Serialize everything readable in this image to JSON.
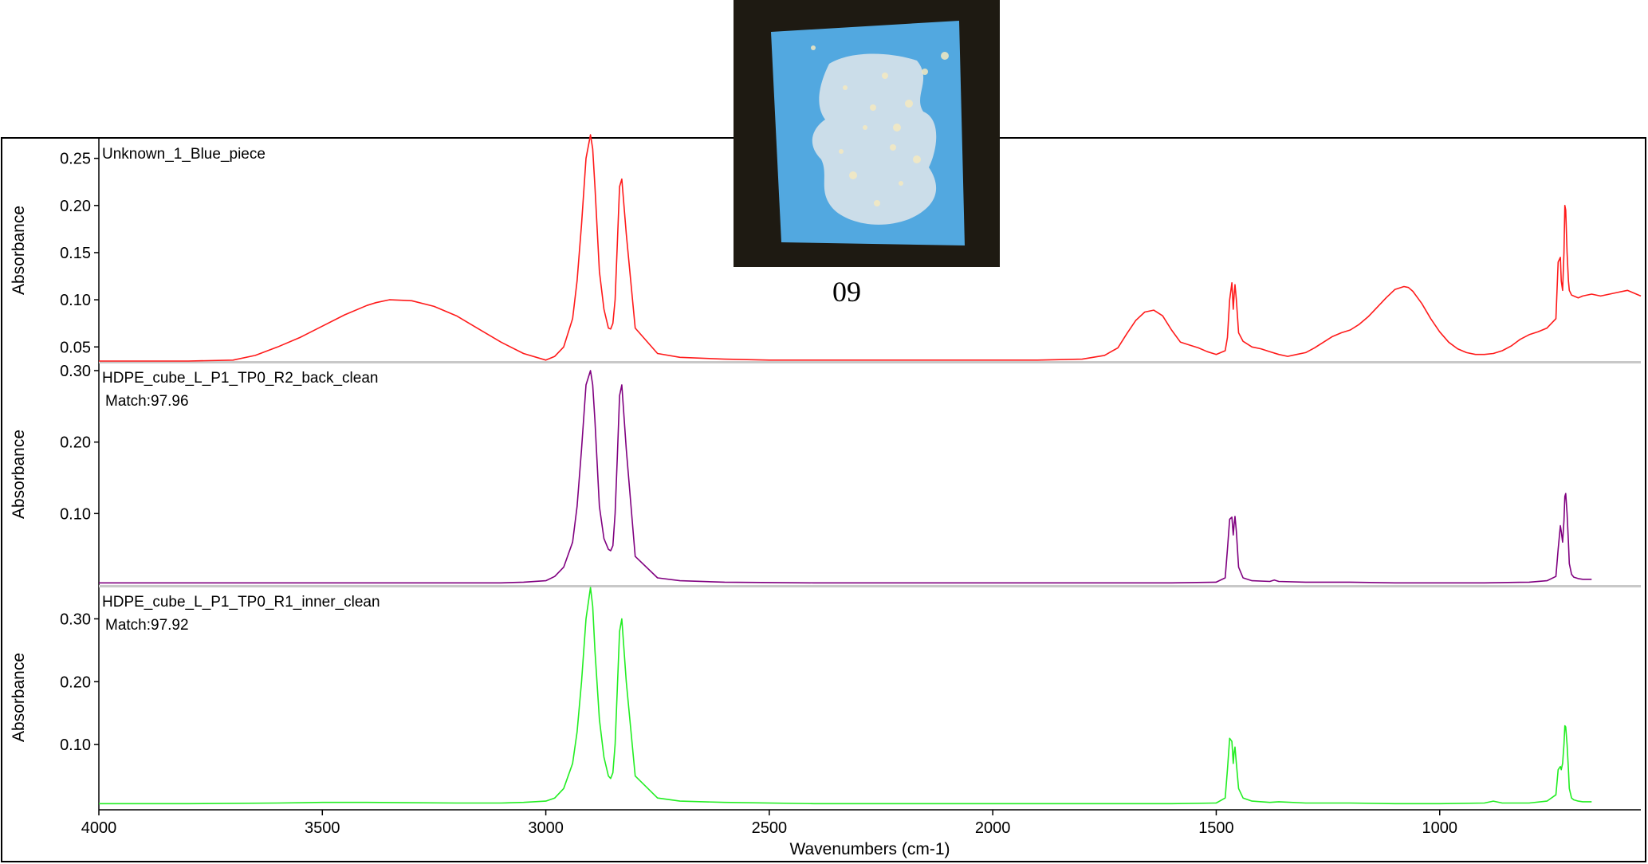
{
  "photo": {
    "caption": "09",
    "background_color": "#1e1a12",
    "sheet_color": "#52a8e0",
    "deposit_color": "#d8e2ea"
  },
  "chart_data": {
    "type": "line",
    "xlabel": "Wavenumbers (cm-1)",
    "xlim": [
      4000,
      550
    ],
    "x_ticks": [
      4000,
      3500,
      3000,
      2500,
      2000,
      1500,
      1000
    ],
    "x_tick_labels": [
      "4000",
      "3500",
      "3000",
      "2500",
      "2000",
      "1500",
      "1000"
    ],
    "panels": [
      {
        "title": "Unknown_1_Blue_piece",
        "match": "",
        "ylabel": "Absorbance",
        "ylim": [
          0.035,
          0.27
        ],
        "y_ticks": [
          0.05,
          0.1,
          0.15,
          0.2,
          0.25
        ],
        "y_tick_labels": [
          "0.05",
          "0.10",
          "0.15",
          "0.20",
          "0.25"
        ],
        "color": "#ff1a1a",
        "series": {
          "x": [
            4000,
            3900,
            3800,
            3700,
            3650,
            3600,
            3550,
            3500,
            3450,
            3400,
            3380,
            3350,
            3300,
            3250,
            3200,
            3150,
            3100,
            3050,
            3000,
            2980,
            2960,
            2940,
            2930,
            2920,
            2910,
            2900,
            2895,
            2890,
            2880,
            2870,
            2860,
            2855,
            2850,
            2845,
            2840,
            2835,
            2830,
            2820,
            2800,
            2750,
            2700,
            2600,
            2500,
            2400,
            2300,
            2200,
            2100,
            2000,
            1900,
            1800,
            1750,
            1720,
            1700,
            1680,
            1660,
            1640,
            1620,
            1600,
            1580,
            1560,
            1540,
            1520,
            1500,
            1480,
            1475,
            1470,
            1465,
            1462,
            1460,
            1458,
            1455,
            1450,
            1440,
            1420,
            1400,
            1380,
            1360,
            1340,
            1320,
            1300,
            1280,
            1260,
            1240,
            1220,
            1200,
            1180,
            1160,
            1140,
            1120,
            1100,
            1080,
            1070,
            1060,
            1040,
            1020,
            1000,
            980,
            960,
            940,
            920,
            900,
            880,
            860,
            840,
            820,
            800,
            780,
            760,
            740,
            735,
            730,
            728,
            725,
            722,
            720,
            718,
            715,
            712,
            710,
            705,
            700,
            690,
            680,
            660,
            640,
            620,
            600,
            580,
            560,
            550
          ],
          "y": [
            0.035,
            0.035,
            0.035,
            0.036,
            0.041,
            0.05,
            0.06,
            0.072,
            0.084,
            0.094,
            0.097,
            0.1,
            0.099,
            0.093,
            0.083,
            0.069,
            0.055,
            0.043,
            0.036,
            0.04,
            0.05,
            0.08,
            0.12,
            0.18,
            0.25,
            0.275,
            0.26,
            0.22,
            0.13,
            0.09,
            0.07,
            0.069,
            0.075,
            0.1,
            0.16,
            0.22,
            0.228,
            0.17,
            0.07,
            0.043,
            0.039,
            0.037,
            0.036,
            0.036,
            0.036,
            0.036,
            0.036,
            0.036,
            0.036,
            0.037,
            0.041,
            0.049,
            0.064,
            0.078,
            0.087,
            0.089,
            0.083,
            0.068,
            0.055,
            0.052,
            0.049,
            0.045,
            0.042,
            0.046,
            0.06,
            0.1,
            0.118,
            0.09,
            0.105,
            0.116,
            0.1,
            0.065,
            0.056,
            0.05,
            0.048,
            0.045,
            0.042,
            0.04,
            0.042,
            0.044,
            0.049,
            0.055,
            0.061,
            0.065,
            0.068,
            0.074,
            0.082,
            0.092,
            0.102,
            0.111,
            0.114,
            0.113,
            0.109,
            0.096,
            0.08,
            0.066,
            0.055,
            0.048,
            0.044,
            0.042,
            0.042,
            0.043,
            0.046,
            0.051,
            0.058,
            0.063,
            0.066,
            0.07,
            0.08,
            0.14,
            0.145,
            0.12,
            0.11,
            0.15,
            0.2,
            0.195,
            0.15,
            0.12,
            0.11,
            0.105,
            0.104,
            0.102,
            0.104,
            0.106,
            0.104,
            0.106,
            0.108,
            0.11,
            0.106,
            0.104
          ]
        }
      },
      {
        "title": "HDPE_cube_L_P1_TP0_R2_back_clean",
        "match": "Match:97.96",
        "ylabel": "Absorbance",
        "ylim": [
          0.0,
          0.31
        ],
        "y_ticks": [
          0.1,
          0.2,
          0.3
        ],
        "y_tick_labels": [
          "0.10",
          "0.20",
          "0.30"
        ],
        "color": "#800080",
        "series": {
          "x": [
            4000,
            3800,
            3600,
            3400,
            3200,
            3100,
            3050,
            3000,
            2980,
            2960,
            2940,
            2930,
            2920,
            2910,
            2900,
            2895,
            2890,
            2880,
            2870,
            2860,
            2855,
            2850,
            2845,
            2840,
            2835,
            2830,
            2820,
            2800,
            2750,
            2700,
            2600,
            2400,
            2200,
            2000,
            1800,
            1600,
            1500,
            1480,
            1475,
            1470,
            1465,
            1462,
            1460,
            1458,
            1455,
            1450,
            1440,
            1420,
            1380,
            1370,
            1360,
            1300,
            1200,
            1100,
            1000,
            900,
            800,
            760,
            740,
            735,
            730,
            728,
            725,
            722,
            720,
            718,
            715,
            712,
            710,
            705,
            700,
            690,
            680,
            660
          ],
          "y": [
            0.003,
            0.003,
            0.003,
            0.003,
            0.003,
            0.003,
            0.004,
            0.006,
            0.012,
            0.025,
            0.06,
            0.11,
            0.19,
            0.28,
            0.3,
            0.28,
            0.23,
            0.11,
            0.065,
            0.05,
            0.048,
            0.055,
            0.1,
            0.18,
            0.265,
            0.28,
            0.19,
            0.04,
            0.01,
            0.006,
            0.004,
            0.003,
            0.003,
            0.003,
            0.003,
            0.003,
            0.004,
            0.01,
            0.05,
            0.092,
            0.095,
            0.07,
            0.085,
            0.096,
            0.075,
            0.025,
            0.01,
            0.006,
            0.005,
            0.007,
            0.005,
            0.004,
            0.004,
            0.003,
            0.003,
            0.003,
            0.004,
            0.006,
            0.012,
            0.05,
            0.083,
            0.075,
            0.06,
            0.09,
            0.124,
            0.128,
            0.1,
            0.06,
            0.03,
            0.015,
            0.011,
            0.009,
            0.008,
            0.008
          ]
        }
      },
      {
        "title": "HDPE_cube_L_P1_TP0_R1_inner_clean",
        "match": "Match:97.92",
        "ylabel": "Absorbance",
        "ylim": [
          0.0,
          0.35
        ],
        "y_ticks": [
          0.1,
          0.2,
          0.3
        ],
        "y_tick_labels": [
          "0.10",
          "0.20",
          "0.30"
        ],
        "color": "#22ee22",
        "series": {
          "x": [
            4000,
            3800,
            3600,
            3500,
            3400,
            3200,
            3100,
            3050,
            3000,
            2980,
            2960,
            2940,
            2930,
            2920,
            2910,
            2900,
            2895,
            2890,
            2880,
            2870,
            2860,
            2855,
            2850,
            2845,
            2840,
            2835,
            2830,
            2820,
            2800,
            2750,
            2700,
            2600,
            2400,
            2200,
            2000,
            1800,
            1600,
            1500,
            1480,
            1475,
            1470,
            1465,
            1462,
            1460,
            1458,
            1455,
            1450,
            1440,
            1420,
            1380,
            1360,
            1300,
            1200,
            1100,
            1000,
            900,
            880,
            860,
            800,
            760,
            740,
            735,
            730,
            728,
            725,
            722,
            720,
            718,
            715,
            712,
            710,
            705,
            700,
            690,
            680,
            660
          ],
          "y": [
            0.006,
            0.006,
            0.007,
            0.008,
            0.008,
            0.007,
            0.007,
            0.008,
            0.01,
            0.015,
            0.03,
            0.07,
            0.12,
            0.2,
            0.3,
            0.35,
            0.32,
            0.25,
            0.14,
            0.08,
            0.05,
            0.046,
            0.055,
            0.1,
            0.19,
            0.28,
            0.3,
            0.2,
            0.05,
            0.015,
            0.01,
            0.008,
            0.006,
            0.006,
            0.006,
            0.006,
            0.006,
            0.007,
            0.015,
            0.06,
            0.11,
            0.105,
            0.07,
            0.088,
            0.096,
            0.07,
            0.03,
            0.015,
            0.01,
            0.008,
            0.009,
            0.007,
            0.007,
            0.006,
            0.006,
            0.007,
            0.01,
            0.007,
            0.007,
            0.01,
            0.02,
            0.06,
            0.065,
            0.06,
            0.07,
            0.1,
            0.13,
            0.128,
            0.1,
            0.06,
            0.03,
            0.015,
            0.012,
            0.01,
            0.009,
            0.009
          ]
        }
      }
    ]
  }
}
